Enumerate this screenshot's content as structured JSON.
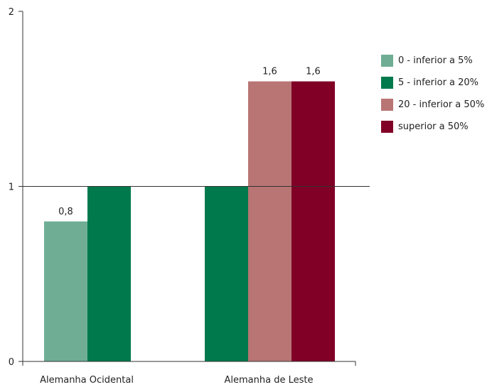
{
  "chart_data": {
    "type": "bar",
    "title": "",
    "xlabel": "",
    "ylabel": "",
    "ylim": [
      0,
      2
    ],
    "yticks": [
      0,
      1,
      2
    ],
    "ytick_labels": [
      "0",
      "1",
      "2"
    ],
    "categories": [
      "Alemanha Ocidental",
      "Alemanha de Leste"
    ],
    "series": [
      {
        "name": "0 - inferior a 5%",
        "color": "#6fae94",
        "values": [
          0.8,
          null
        ],
        "labels": [
          "0,8",
          ""
        ]
      },
      {
        "name": "5 - inferior a 20%",
        "color": "#007a4d",
        "values": [
          1,
          1
        ],
        "labels": [
          "",
          ""
        ]
      },
      {
        "name": "20 - inferior a 50%",
        "color": "#b97474",
        "values": [
          null,
          1.6
        ],
        "labels": [
          "",
          "1,6"
        ]
      },
      {
        "name": "superior a 50%",
        "color": "#800026",
        "values": [
          null,
          1.6
        ],
        "labels": [
          "",
          "1,6"
        ]
      }
    ],
    "grid": "horizontal line at 1",
    "legend_position": "right"
  }
}
